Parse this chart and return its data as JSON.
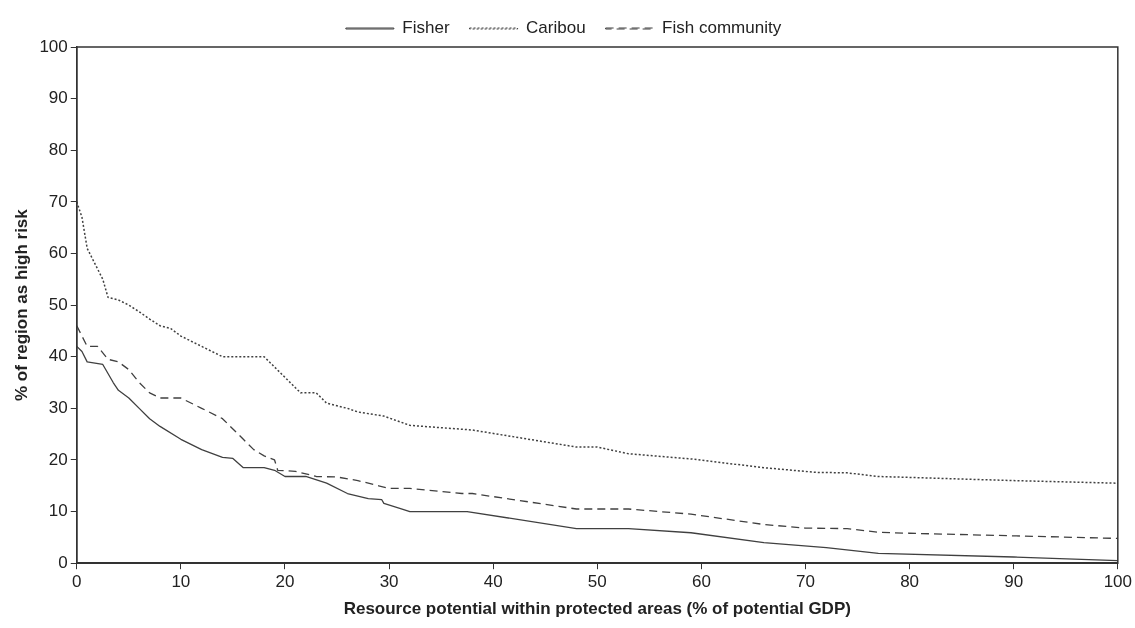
{
  "chart_data": {
    "type": "line",
    "xlabel": "Resource potential within protected areas (% of potential GDP)",
    "ylabel": "% of region as high risk",
    "xlim": [
      0,
      100
    ],
    "xticks": [
      0,
      10,
      20,
      30,
      40,
      50,
      60,
      70,
      80,
      90,
      100
    ],
    "ylim": [
      0,
      100
    ],
    "yticks": [
      0,
      10,
      20,
      30,
      40,
      50,
      60,
      70,
      80,
      90,
      100
    ],
    "grid": false,
    "legend": "top",
    "marker": "none",
    "series": [
      {
        "name": "Fisher",
        "color": "#404040",
        "line_style": "solid",
        "x": [
          0,
          0.5,
          1,
          2.5,
          3.5,
          4,
          5,
          6,
          7,
          8,
          10,
          12,
          14,
          15,
          16,
          18,
          19,
          20,
          22,
          24,
          26,
          28,
          29.3,
          29.5,
          32,
          37.5,
          48,
          53,
          59,
          66,
          72,
          77,
          90,
          100
        ],
        "values": [
          42,
          41,
          39,
          38.5,
          35,
          33.5,
          32,
          30,
          28,
          26.5,
          24,
          22,
          20.5,
          20.3,
          18.5,
          18.5,
          18,
          16.8,
          16.8,
          15.5,
          13.5,
          12.5,
          12.3,
          11.6,
          10,
          10,
          6.7,
          6.7,
          5.9,
          4,
          3,
          1.9,
          1.2,
          0.5
        ]
      },
      {
        "name": "Caribou",
        "color": "#404040",
        "line_style": "dotted",
        "x": [
          0,
          0.5,
          1,
          2,
          2.5,
          3,
          4,
          5,
          6,
          7,
          8,
          9,
          10,
          12,
          14,
          18,
          19,
          21,
          21.5,
          23,
          24,
          26,
          27,
          29.5,
          32,
          38,
          48,
          50,
          53,
          59,
          66,
          71,
          74,
          77,
          90,
          100
        ],
        "values": [
          70,
          67,
          61,
          57,
          55,
          51.5,
          51,
          50,
          48.7,
          47.3,
          46,
          45.5,
          44,
          42,
          40,
          40,
          38,
          34,
          33,
          33,
          31,
          30,
          29.3,
          28.5,
          26.7,
          25.8,
          22.5,
          22.5,
          21.2,
          20.2,
          18.5,
          17.6,
          17.5,
          16.8,
          16,
          15.5
        ]
      },
      {
        "name": "Fish community",
        "color": "#404040",
        "line_style": "dashed",
        "x": [
          0,
          1,
          2,
          3,
          4,
          5,
          6,
          7,
          8,
          10,
          12,
          14,
          15,
          16,
          17,
          18,
          19,
          19.3,
          21,
          23,
          25,
          27,
          29,
          30,
          32,
          37,
          38,
          48,
          53,
          59,
          66,
          70,
          74,
          77,
          80,
          90,
          100
        ],
        "values": [
          46,
          42,
          42,
          39.5,
          39,
          37.5,
          35,
          33,
          32,
          32,
          30,
          28,
          26,
          24,
          22,
          20.8,
          20,
          18,
          17.8,
          16.8,
          16.7,
          16,
          15,
          14.5,
          14.5,
          13.5,
          13.5,
          10.5,
          10.5,
          9.5,
          7.5,
          6.8,
          6.7,
          6,
          5.8,
          5.3,
          4.8
        ]
      }
    ]
  }
}
